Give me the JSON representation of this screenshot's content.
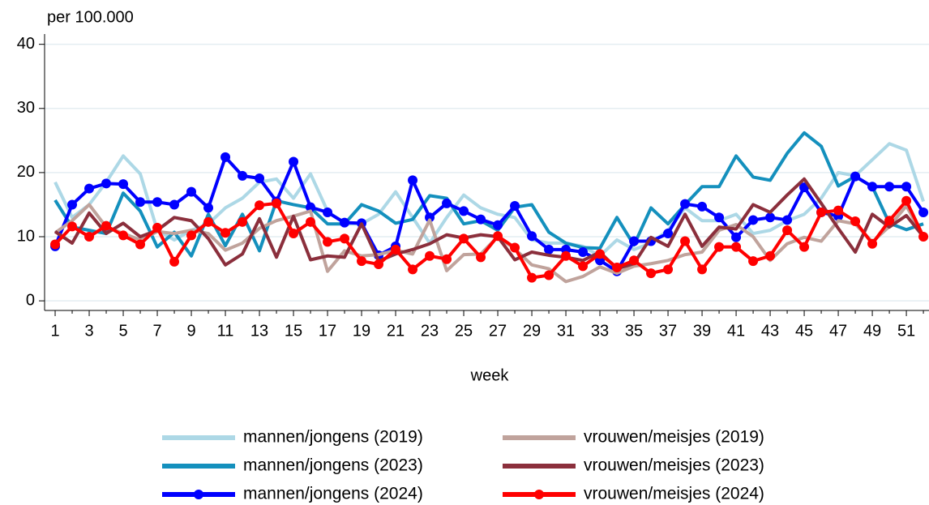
{
  "chart_data": {
    "type": "line",
    "y_label": "per 100.000",
    "x_label": "week",
    "x": [
      1,
      2,
      3,
      4,
      5,
      6,
      7,
      8,
      9,
      10,
      11,
      12,
      13,
      14,
      15,
      16,
      17,
      18,
      19,
      20,
      21,
      22,
      23,
      24,
      25,
      26,
      27,
      28,
      29,
      30,
      31,
      32,
      33,
      34,
      35,
      36,
      37,
      38,
      39,
      40,
      41,
      42,
      43,
      44,
      45,
      46,
      47,
      48,
      49,
      50,
      51,
      52
    ],
    "xlim": [
      0.38,
      52.33
    ],
    "xticks": [
      1,
      3,
      5,
      7,
      9,
      11,
      13,
      15,
      17,
      19,
      21,
      23,
      25,
      27,
      29,
      31,
      33,
      35,
      37,
      39,
      41,
      43,
      45,
      47,
      49,
      51
    ],
    "xminorticks": [
      2,
      4,
      6,
      8,
      10,
      12,
      14,
      16,
      18,
      20,
      22,
      24,
      26,
      28,
      30,
      32,
      34,
      36,
      38,
      40,
      42,
      44,
      46,
      48,
      50,
      52
    ],
    "ylim": [
      -1.5,
      41.6
    ],
    "yticks": [
      0,
      10,
      20,
      30,
      40
    ],
    "grid": true,
    "legend_position": "bottom",
    "series": [
      {
        "name": "mannen/jongens (2019)",
        "color": "#add8e6",
        "marker": false,
        "values": [
          18.5,
          13,
          15,
          18.5,
          22.6,
          19.8,
          11,
          9.5,
          11,
          12,
          14.5,
          16,
          18.5,
          19,
          16,
          19.8,
          14,
          12,
          12,
          13.5,
          17,
          13,
          9,
          13,
          16.5,
          14.5,
          13.5,
          13,
          9.5,
          9,
          9,
          8.5,
          7,
          9.5,
          8,
          9,
          11,
          14.5,
          12.5,
          12.5,
          13.5,
          10.5,
          11,
          12.5,
          13.5,
          16,
          20,
          19.5,
          22,
          24.5,
          23.5,
          15.5
        ]
      },
      {
        "name": "mannen/jongens (2023)",
        "color": "#1490bd",
        "marker": false,
        "values": [
          15.7,
          11.5,
          11,
          10.5,
          16.8,
          14,
          8.4,
          10.7,
          7,
          13.5,
          8.6,
          13.5,
          7.8,
          15.6,
          15,
          14.5,
          12,
          12,
          15,
          14,
          12.1,
          12.7,
          16.4,
          16,
          12,
          12.5,
          11,
          14.6,
          15,
          10.7,
          9,
          8.3,
          8.2,
          13,
          8.7,
          14.5,
          12,
          15,
          17.8,
          17.8,
          22.6,
          19.3,
          18.8,
          23,
          26.2,
          24.1,
          17.9,
          19.4,
          17.8,
          12.1,
          11.1,
          12
        ]
      },
      {
        "name": "mannen/jongens (2024)",
        "color": "#0000ff",
        "marker": true,
        "values": [
          8.5,
          15,
          17.5,
          18.3,
          18.2,
          15.4,
          15.4,
          15,
          17,
          14.5,
          22.4,
          19.5,
          19.1,
          15.5,
          21.7,
          14.6,
          13.8,
          12.2,
          12.1,
          7.1,
          8.5,
          18.8,
          13,
          15.2,
          14,
          12.7,
          11.8,
          14.8,
          10.1,
          8,
          8,
          7.6,
          6.3,
          4.6,
          9.3,
          9.3,
          10.5,
          15.1,
          14.7,
          13,
          9.9,
          12.6,
          13,
          12.6,
          17.7,
          13.8,
          13.2,
          19.4,
          17.8,
          17.8,
          17.8,
          13.8
        ]
      },
      {
        "name": "vrouwen/meisjes (2019)",
        "color": "#c0a39c",
        "marker": false,
        "values": [
          10.6,
          12.5,
          15,
          11.5,
          10.5,
          9.5,
          10.8,
          10.5,
          11,
          10.5,
          7.9,
          9,
          11.3,
          12.5,
          13.2,
          14,
          4.6,
          7.8,
          7,
          7.2,
          7.9,
          7.3,
          12.6,
          4.7,
          7.2,
          7.3,
          10,
          8.1,
          5.6,
          5,
          3,
          3.8,
          5.3,
          4.3,
          5.4,
          5.8,
          6.3,
          7.2,
          7.6,
          11,
          11.9,
          10,
          6.3,
          8.9,
          9.9,
          9.3,
          12.5,
          12,
          9.2,
          11.6,
          14.8,
          10
        ]
      },
      {
        "name": "vrouwen/meisjes (2023)",
        "color": "#8b2f3c",
        "marker": false,
        "values": [
          10.8,
          9,
          13.7,
          10.5,
          12.1,
          10,
          11,
          13,
          12.5,
          9.7,
          5.6,
          7.3,
          12.8,
          6.8,
          13.2,
          6.4,
          7,
          6.8,
          12,
          6.2,
          7.3,
          8,
          8.9,
          10.3,
          9.8,
          10.3,
          10,
          6.4,
          7.6,
          7.1,
          6.8,
          6.3,
          7.6,
          5,
          5.8,
          9.9,
          8.5,
          13.5,
          8.5,
          11.5,
          11.2,
          15,
          13.8,
          16.5,
          19,
          15.2,
          11.3,
          7.6,
          13.5,
          11.5,
          13.3,
          10
        ]
      },
      {
        "name": "vrouwen/meisjes (2024)",
        "color": "#ff0000",
        "marker": true,
        "values": [
          8.8,
          11.6,
          10,
          11.7,
          10.2,
          8.8,
          11.4,
          6.1,
          10.2,
          12.3,
          10.6,
          12.3,
          14.9,
          15.2,
          10.5,
          12.3,
          9.2,
          9.7,
          6.2,
          5.7,
          8,
          4.9,
          7,
          6.5,
          9.7,
          6.8,
          10.1,
          8.3,
          3.6,
          4,
          7,
          5.4,
          7.3,
          5.2,
          6.3,
          4.3,
          4.9,
          9.3,
          4.9,
          8.4,
          8.4,
          6.2,
          7,
          11,
          8.4,
          13.8,
          14.1,
          12.4,
          8.9,
          12.5,
          15.6,
          10
        ]
      }
    ]
  }
}
